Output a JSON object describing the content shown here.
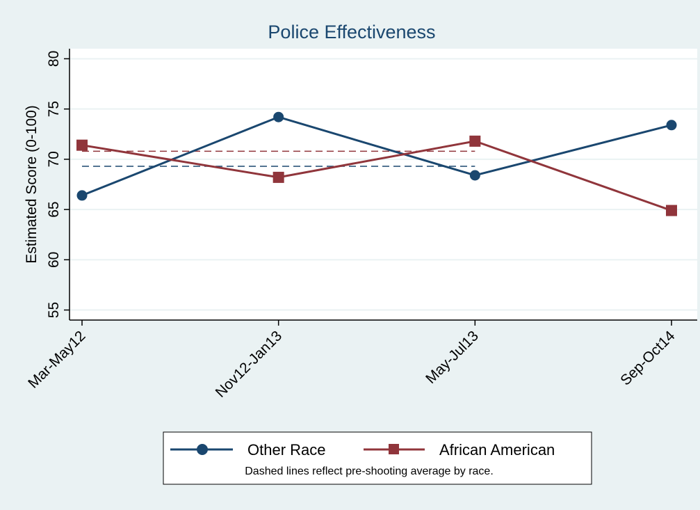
{
  "chart_data": {
    "type": "line",
    "title": "Police Effectiveness",
    "xlabel": "",
    "ylabel": "Estimated Score (0-100)",
    "categories": [
      "Mar-May12",
      "Nov12-Jan13",
      "May-Jul13",
      "Sep-Oct14"
    ],
    "ylim": [
      54,
      81
    ],
    "yticks": [
      55,
      60,
      65,
      70,
      75,
      80
    ],
    "grid": true,
    "series": [
      {
        "name": "Other Race",
        "values": [
          66.4,
          74.2,
          68.4,
          73.4
        ],
        "color": "#1a476f",
        "marker": "circle"
      },
      {
        "name": "African American",
        "values": [
          71.4,
          68.2,
          71.8,
          64.9
        ],
        "color": "#90353b",
        "marker": "square"
      }
    ],
    "reference_lines": [
      {
        "series": "Other Race",
        "value": 69.3,
        "style": "dashed",
        "color": "#1a476f",
        "span": [
          "Mar-May12",
          "May-Jul13"
        ]
      },
      {
        "series": "African American",
        "value": 70.8,
        "style": "dashed",
        "color": "#90353b",
        "span": [
          "Mar-May12",
          "May-Jul13"
        ]
      }
    ],
    "legend": {
      "position": "bottom",
      "note": "Dashed lines reflect pre-shooting average by race."
    }
  }
}
